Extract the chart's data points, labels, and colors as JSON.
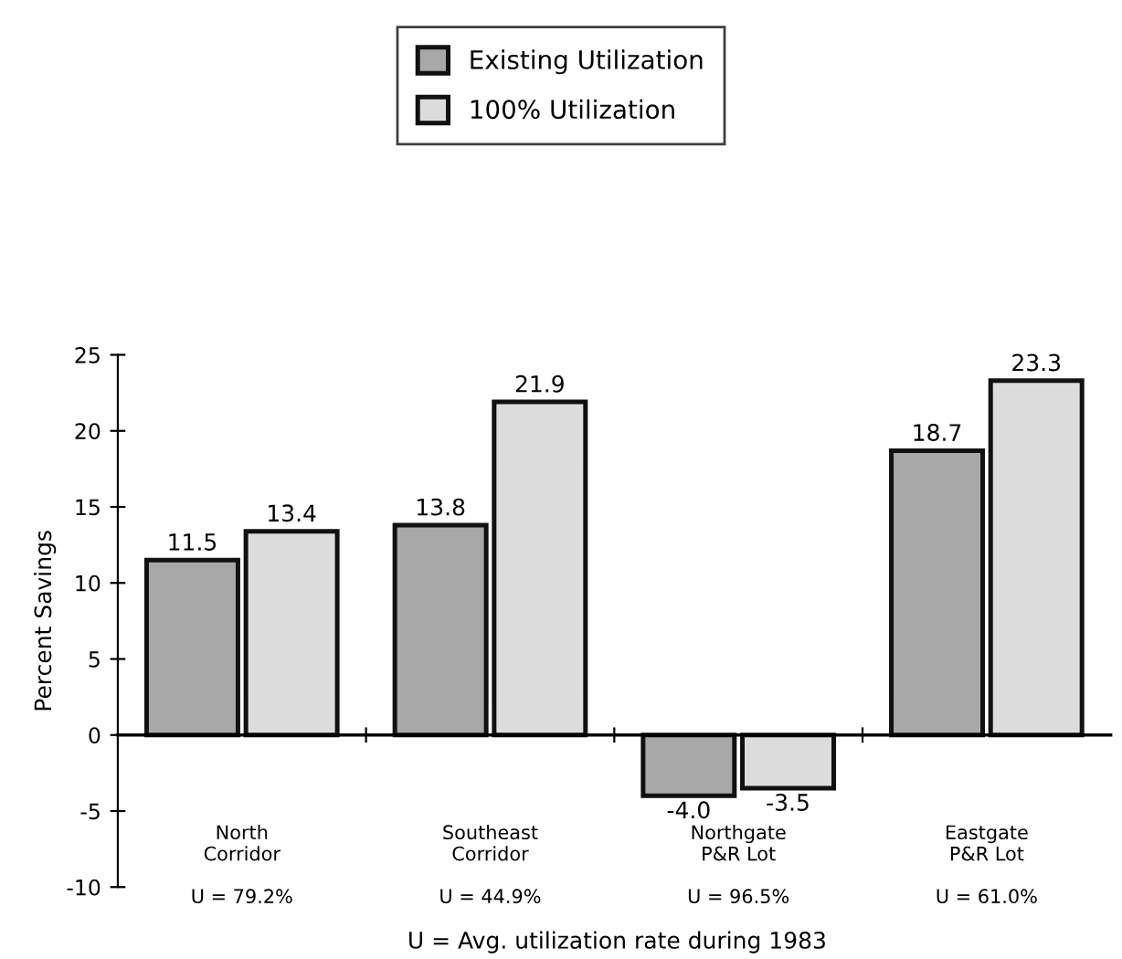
{
  "chart_data": {
    "type": "bar",
    "ylabel": "Percent Savings",
    "categories": [
      "North\nCorridor\n\nU = 79.2%",
      "Southeast\nCorridor\n\nU = 44.9%",
      "Northgate\nP&R Lot\n\nU = 96.5%",
      "Eastgate\nP&R Lot\n\nU = 61.0%"
    ],
    "series": [
      {
        "name": "Existing Utilization",
        "color": "#a8a8a8",
        "values": [
          11.5,
          13.8,
          -4.0,
          18.7
        ],
        "value_labels": [
          "11.5",
          "13.8",
          "-4.0",
          "18.7"
        ]
      },
      {
        "name": "100% Utilization",
        "color": "#dcdcdc",
        "values": [
          13.4,
          21.9,
          -3.5,
          23.3
        ],
        "value_labels": [
          "13.4",
          "21.9",
          "-3.5",
          "23.3"
        ]
      }
    ],
    "ylim": [
      -10,
      25
    ],
    "yticks": [
      -10,
      -5,
      0,
      5,
      10,
      15,
      20,
      25
    ],
    "legend": "top",
    "annotations": [
      "U = Avg. utilization rate during 1983"
    ]
  }
}
